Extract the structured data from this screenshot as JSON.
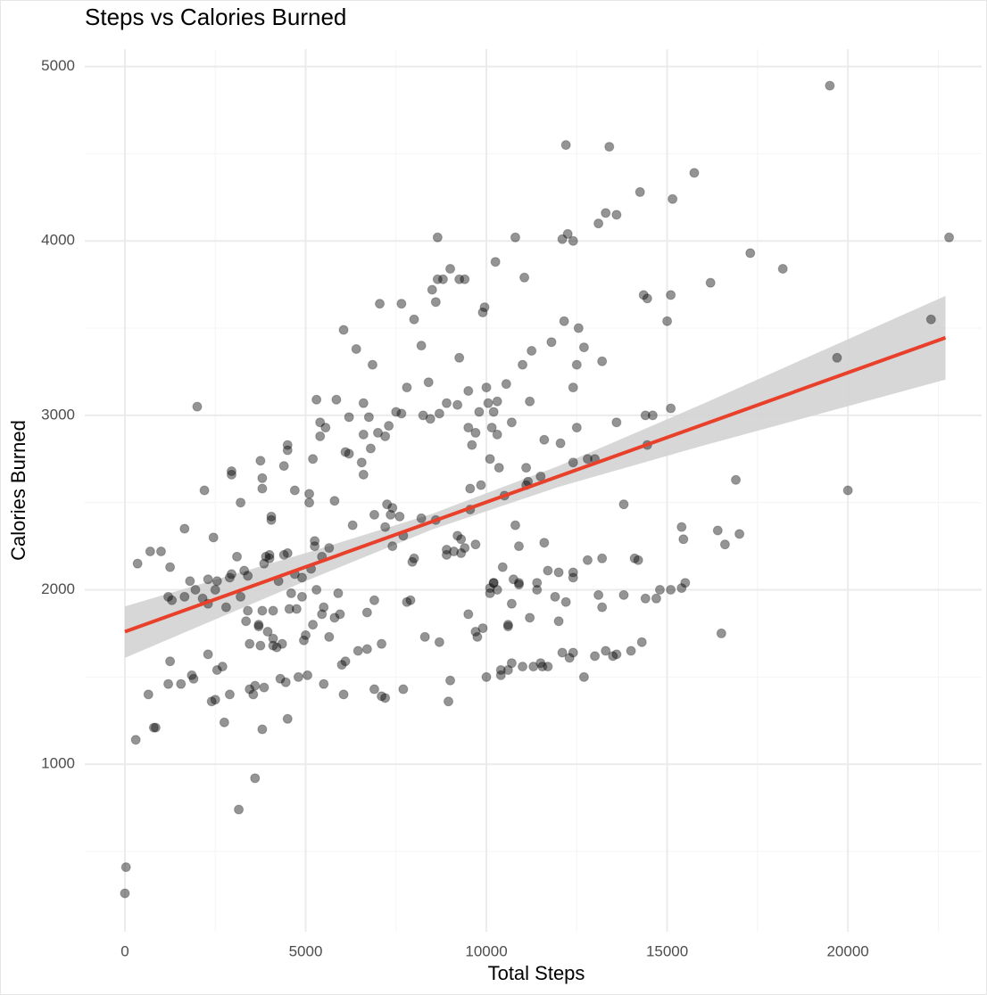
{
  "chart_data": {
    "type": "scatter",
    "title": "Steps vs Calories Burned",
    "x_label": "Total Steps",
    "y_label": "Calories Burned",
    "xlim": [
      -1110,
      23700
    ],
    "ylim": [
      40,
      5100
    ],
    "xticks": [
      0,
      5000,
      10000,
      15000,
      20000
    ],
    "yticks": [
      1000,
      2000,
      3000,
      4000,
      5000
    ],
    "xminor": [
      2500,
      7500,
      12500,
      17500,
      22500
    ],
    "yminor": [
      500,
      1500,
      2500,
      3500,
      4500
    ],
    "grid": true,
    "series": [
      {
        "color": "#000000",
        "x": [
          0,
          30,
          300,
          850,
          800,
          650,
          350,
          700,
          1000,
          1200,
          1250,
          1300,
          1200,
          1250,
          1550,
          1650,
          1650,
          1800,
          1850,
          1900,
          1950,
          2000,
          2150,
          2200,
          2300,
          2300,
          2300,
          2400,
          2450,
          2500,
          2500,
          2550,
          2550,
          2700,
          2750,
          2800,
          2900,
          2950,
          2950,
          2950,
          2900,
          3100,
          3150,
          3200,
          3200,
          3300,
          3350,
          3400,
          3400,
          3450,
          3450,
          3550,
          3600,
          3600,
          3700,
          3700,
          3750,
          3750,
          3800,
          3800,
          3800,
          3850,
          3850,
          3900,
          3950,
          4000,
          4000,
          4050,
          4050,
          4100,
          4100,
          4100,
          4200,
          4250,
          4300,
          4350,
          4400,
          4400,
          4450,
          4500,
          4500,
          4500,
          4500,
          4550,
          4600,
          4700,
          4700,
          4750,
          4800,
          4900,
          4950,
          5000,
          5050,
          5100,
          5100,
          5150,
          5200,
          5250,
          5250,
          5300,
          5400,
          5450,
          5450,
          5500,
          5500,
          5550,
          5650,
          5650,
          5800,
          5800,
          5850,
          5950,
          6000,
          6050,
          6050,
          6100,
          6100,
          6200,
          6300,
          6400,
          6450,
          6550,
          6600,
          6600,
          6600,
          6700,
          6750,
          6800,
          6850,
          6900,
          6900,
          7000,
          7050,
          7100,
          7200,
          7250,
          7300,
          7350,
          7400,
          7500,
          7600,
          7650,
          7700,
          7700,
          7650,
          7800,
          7900,
          7950,
          8000,
          8000,
          8200,
          8250,
          8300,
          8400,
          8450,
          8500,
          8600,
          8650,
          8650,
          8700,
          8800,
          8900,
          9000,
          8900,
          8950,
          9000,
          9100,
          9200,
          9250,
          9250,
          9300,
          9400,
          9500,
          9500,
          9550,
          9550,
          9600,
          9700,
          9700,
          9750,
          9800,
          9850,
          9900,
          9950,
          10000,
          10050,
          10100,
          10100,
          10150,
          10200,
          10200,
          10250,
          10300,
          10300,
          10350,
          10400,
          10450,
          10500,
          10550,
          10600,
          10700,
          10750,
          10800,
          10800,
          10900,
          11000,
          11050,
          11100,
          11150,
          11200,
          11250,
          11300,
          11400,
          11500,
          11600,
          11700,
          11800,
          11900,
          12050,
          12100,
          12150,
          12200,
          12250,
          12400,
          12400,
          12400,
          12500,
          12500,
          12550,
          12700,
          12800,
          13000,
          13100,
          13200,
          13300,
          13400,
          13600,
          13600,
          13800,
          14100,
          14250,
          14350,
          14400,
          14450,
          14450,
          14600,
          14800,
          15000,
          15100,
          15100,
          15150,
          15400,
          15450,
          15750,
          16200,
          16400,
          16500,
          16600,
          16900,
          17000,
          17300,
          18200,
          19500,
          19700,
          20000,
          22300,
          22800,
          10000,
          10400,
          10600,
          10700,
          11000,
          11500,
          11550,
          12000,
          12100,
          12300,
          12400,
          12700,
          13000,
          13200,
          13300,
          13500,
          13600,
          14000,
          14300,
          14400,
          14700,
          15100,
          15400,
          15500,
          13100,
          13800,
          14200,
          13200,
          12800,
          12400,
          12400,
          12200,
          12000,
          11700,
          11600,
          11400,
          11200,
          10900,
          10700,
          10600,
          10300,
          10200,
          10100,
          9900,
          9700,
          9500,
          9400,
          9300,
          9200,
          8900,
          8700,
          8600,
          8200,
          7800,
          7400,
          7200,
          7100,
          7200,
          6900,
          6700,
          6200,
          5900,
          5400,
          5300,
          5200,
          4900,
          3800,
          11100,
          10900
        ],
        "values": [
          260,
          410,
          1140,
          1210,
          1210,
          1400,
          2150,
          2220,
          2220,
          1960,
          2130,
          1940,
          1460,
          1590,
          1460,
          1960,
          2350,
          2050,
          1510,
          1490,
          2000,
          3050,
          1950,
          2570,
          2060,
          1920,
          1630,
          1360,
          2300,
          2000,
          1370,
          2050,
          1540,
          1560,
          1240,
          1900,
          2070,
          2680,
          2660,
          2090,
          1400,
          2190,
          740,
          2500,
          1960,
          2110,
          1820,
          2080,
          1880,
          1690,
          1430,
          1400,
          920,
          1450,
          1800,
          1790,
          2740,
          1680,
          2640,
          2580,
          1200,
          1440,
          2150,
          2190,
          1760,
          2180,
          2200,
          2420,
          2400,
          1880,
          1720,
          1680,
          1670,
          2050,
          1490,
          1690,
          2200,
          2710,
          1470,
          1260,
          2800,
          2830,
          2210,
          1890,
          1980,
          2570,
          2090,
          1890,
          1500,
          2070,
          1710,
          1740,
          1510,
          2550,
          2500,
          2120,
          2750,
          2280,
          2250,
          3090,
          2880,
          2190,
          1860,
          1900,
          1460,
          2930,
          2240,
          1730,
          1840,
          2510,
          3090,
          1860,
          1570,
          3490,
          1400,
          1590,
          2790,
          2780,
          2370,
          3380,
          1650,
          2730,
          2890,
          2660,
          3070,
          1660,
          2990,
          2810,
          3290,
          2430,
          1940,
          2900,
          3640,
          1690,
          2880,
          2490,
          2940,
          2430,
          2470,
          3020,
          2420,
          3010,
          1430,
          2310,
          3640,
          3160,
          1940,
          2160,
          3550,
          2180,
          3400,
          3000,
          1730,
          3190,
          2980,
          3720,
          3650,
          3780,
          4020,
          3010,
          3780,
          3070,
          3840,
          2200,
          1360,
          1480,
          2220,
          3060,
          3780,
          3330,
          2290,
          3780,
          3140,
          2930,
          2580,
          2460,
          2830,
          2900,
          2260,
          1730,
          3020,
          2600,
          3590,
          3620,
          3160,
          3070,
          2750,
          2010,
          2930,
          2040,
          3020,
          3880,
          2890,
          3080,
          2700,
          1510,
          2130,
          2540,
          3180,
          1800,
          2960,
          2060,
          4020,
          2370,
          2030,
          3290,
          3790,
          2700,
          2620,
          3080,
          3370,
          1560,
          2000,
          2650,
          2860,
          1560,
          3420,
          1960,
          2840,
          4010,
          3540,
          4550,
          4040,
          4000,
          3160,
          2730,
          2930,
          3290,
          3500,
          3390,
          2750,
          2750,
          4100,
          3310,
          4160,
          4540,
          4150,
          2960,
          2490,
          2180,
          4280,
          3690,
          3000,
          3670,
          2830,
          3000,
          2000,
          3540,
          3690,
          3040,
          4240,
          2360,
          2290,
          4390,
          3760,
          2340,
          1750,
          2260,
          2630,
          2320,
          3930,
          3840,
          4890,
          3330,
          2570,
          3550,
          4020,
          1500,
          1540,
          1540,
          1580,
          1560,
          1580,
          1560,
          1820,
          1640,
          1610,
          1640,
          1500,
          1620,
          1900,
          1650,
          1620,
          1630,
          1650,
          1700,
          1950,
          1950,
          2000,
          2010,
          2040,
          1970,
          1970,
          2170,
          2180,
          2170,
          2100,
          2070,
          1930,
          2100,
          2110,
          2270,
          2040,
          1840,
          2250,
          1920,
          1790,
          2000,
          2040,
          1980,
          1780,
          1760,
          1860,
          2240,
          2210,
          2310,
          2230,
          1700,
          2400,
          2410,
          1930,
          2250,
          2360,
          1390,
          1380,
          1430,
          1870,
          2990,
          1980,
          2960,
          2000,
          1800,
          1960,
          1880,
          2600,
          2040
        ]
      }
    ],
    "fit": {
      "color": "#e8402a",
      "x": [
        0,
        22700
      ],
      "values": [
        1760,
        3445
      ]
    },
    "band": {
      "color": "#d3d3d3",
      "x": [
        0,
        5000,
        8500,
        12000,
        16000,
        22700
      ],
      "lower": [
        1610,
        2050,
        2346,
        2590,
        2827,
        3205
      ],
      "upper": [
        1905,
        2210,
        2436,
        2710,
        3067,
        3685
      ]
    }
  }
}
